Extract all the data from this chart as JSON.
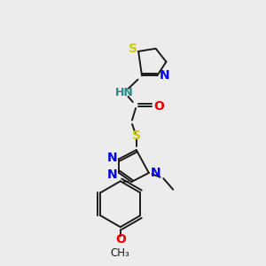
{
  "background_color": "#ececec",
  "fig_size": [
    3.0,
    3.0
  ],
  "dpi": 100,
  "bond_lw": 1.4,
  "bond_color": "#1a1a1a",
  "atom_colors": {
    "S": "#cccc00",
    "N": "#0000ee",
    "O": "#ee0000",
    "NH": "#228888",
    "C": "#1a1a1a"
  }
}
